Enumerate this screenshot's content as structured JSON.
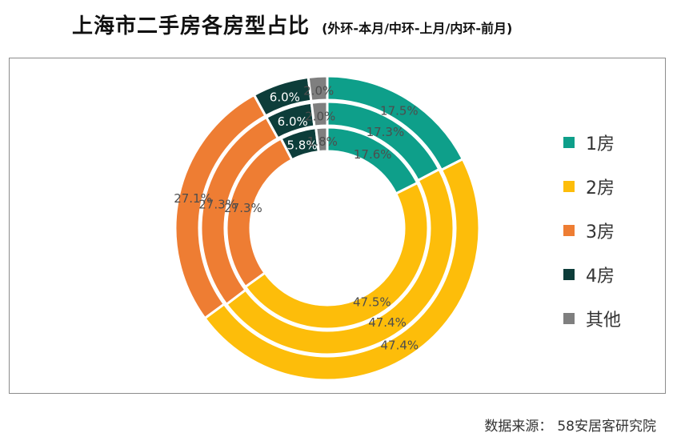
{
  "header": {
    "title": "上海市二手房各房型占比",
    "subtitle": "(外环-本月/中环-上月/内环-前月)"
  },
  "source": {
    "label": "数据来源：",
    "value": "58安居客研究院"
  },
  "colors": {
    "1房": "#0e9f8a",
    "2房": "#fdbd0a",
    "3房": "#ee7d33",
    "4房": "#0d3d3a",
    "其他": "#7f7f7f"
  },
  "chart_data": {
    "type": "donut",
    "title": "上海市二手房各房型占比",
    "subtitle": "(外环-本月/中环-上月/内环-前月)",
    "categories": [
      "1房",
      "2房",
      "3房",
      "4房",
      "其他"
    ],
    "legend_position": "right",
    "series": [
      {
        "ring": "outer",
        "values": [
          17.5,
          47.4,
          27.1,
          6.0,
          2.0
        ],
        "labels": [
          "17.5%",
          "47.4%",
          "27.1%",
          "6.0%",
          "2.0%"
        ]
      },
      {
        "ring": "middle",
        "values": [
          17.3,
          47.4,
          27.3,
          6.0,
          2.0
        ],
        "labels": [
          "17.3%",
          "47.4%",
          "27.3%",
          "6.0%",
          "2.0%"
        ]
      },
      {
        "ring": "inner",
        "values": [
          17.6,
          47.5,
          27.3,
          5.8,
          1.8
        ],
        "labels": [
          "17.6%",
          "47.5%",
          "27.3%",
          "5.8%",
          "1.8%"
        ]
      }
    ]
  }
}
